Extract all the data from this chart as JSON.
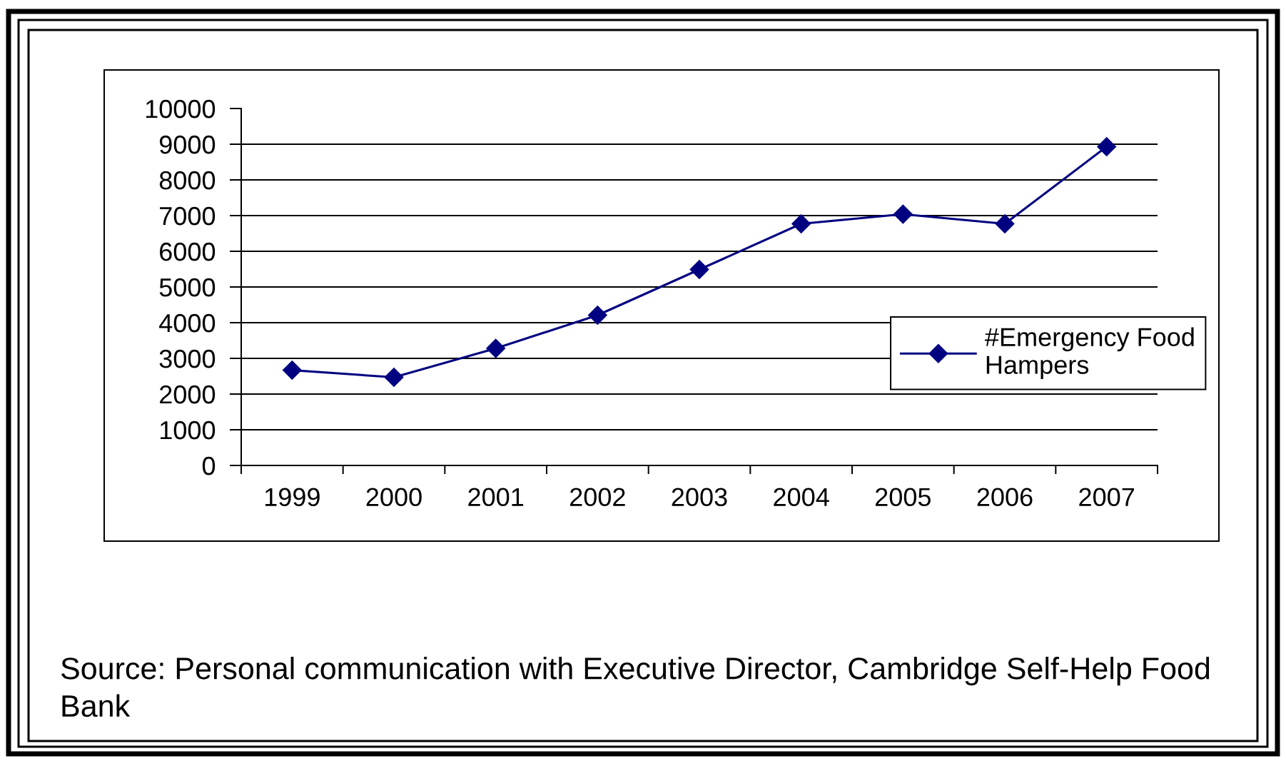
{
  "chart_data": {
    "type": "line",
    "categories": [
      "1999",
      "2000",
      "2001",
      "2002",
      "2003",
      "2004",
      "2005",
      "2006",
      "2007"
    ],
    "series": [
      {
        "name": "#Emergency Food Hampers",
        "color": "#000080",
        "values": [
          2670,
          2470,
          3280,
          4210,
          5490,
          6770,
          7040,
          6770,
          8930
        ]
      }
    ],
    "ylim": [
      0,
      10000
    ],
    "yticks": [
      0,
      1000,
      2000,
      3000,
      4000,
      5000,
      6000,
      7000,
      8000,
      9000,
      10000
    ],
    "grid": "y",
    "legend": "right",
    "marker": "diamond",
    "line_style": "solid",
    "annotations": [
      "Source: Personal communication with Executive Director, Cambridge Self-Help Food Bank"
    ]
  }
}
